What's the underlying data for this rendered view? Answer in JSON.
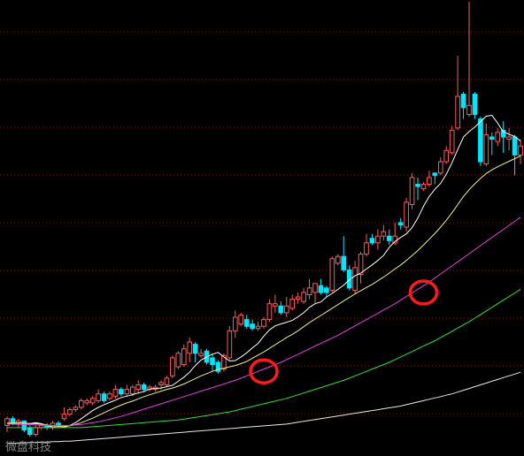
{
  "chart_data": {
    "type": "candlestick",
    "title": "",
    "xlabel": "",
    "ylabel": "",
    "ylim": [
      0,
      100
    ],
    "grid": "horizontal-dotted",
    "colors": {
      "background": "#000000",
      "up": "#ff5a5a",
      "down": "#00e5ff",
      "grid": "#8a1515",
      "ma_white": "#ffffff",
      "ma_yellow": "#f2f27a",
      "ma_magenta": "#e040e0",
      "ma_green": "#33dd33",
      "ma_lightgray": "#e8e8e8",
      "highlight_circle": "#ff1a1a"
    },
    "candles": [
      [
        6.0,
        7.5,
        4.5,
        8.0
      ],
      [
        7.5,
        6.5,
        6.0,
        8.0
      ],
      [
        6.5,
        7.0,
        5.5,
        7.5
      ],
      [
        7.0,
        5.0,
        4.5,
        7.0
      ],
      [
        5.5,
        4.0,
        3.5,
        6.0
      ],
      [
        4.0,
        5.5,
        3.5,
        6.0
      ],
      [
        5.5,
        6.0,
        5.0,
        6.5
      ],
      [
        6.0,
        5.5,
        5.0,
        6.5
      ],
      [
        5.5,
        6.5,
        5.0,
        7.0
      ],
      [
        6.5,
        6.0,
        5.5,
        7.0
      ],
      [
        7.5,
        8.5,
        7.0,
        10.0
      ],
      [
        8.5,
        9.5,
        8.0,
        10.0
      ],
      [
        9.5,
        10.0,
        9.0,
        10.5
      ],
      [
        10.0,
        11.5,
        9.5,
        12.0
      ],
      [
        11.0,
        11.5,
        10.5,
        12.0
      ],
      [
        11.0,
        12.0,
        10.5,
        12.5
      ],
      [
        11.5,
        13.0,
        11.0,
        14.0
      ],
      [
        13.0,
        11.5,
        11.0,
        13.5
      ],
      [
        12.0,
        13.0,
        11.5,
        13.5
      ],
      [
        12.5,
        14.0,
        12.0,
        15.0
      ],
      [
        14.0,
        13.0,
        12.5,
        14.5
      ],
      [
        13.0,
        14.0,
        12.5,
        15.0
      ],
      [
        13.0,
        14.5,
        12.5,
        15.0
      ],
      [
        14.0,
        15.0,
        13.0,
        16.0
      ],
      [
        15.0,
        14.0,
        13.5,
        15.5
      ],
      [
        14.0,
        14.5,
        13.5,
        15.0
      ],
      [
        14.0,
        14.5,
        13.5,
        15.0
      ],
      [
        15.0,
        15.5,
        14.0,
        16.0
      ],
      [
        15.0,
        16.5,
        14.5,
        17.0
      ],
      [
        17.0,
        21.0,
        16.5,
        21.5
      ],
      [
        19.0,
        22.0,
        18.5,
        22.5
      ],
      [
        19.5,
        23.0,
        19.0,
        24.0
      ],
      [
        22.0,
        24.5,
        20.0,
        25.5
      ],
      [
        24.0,
        22.0,
        20.0,
        24.5
      ],
      [
        21.5,
        22.0,
        21.0,
        23.0
      ],
      [
        22.5,
        20.0,
        19.5,
        23.0
      ],
      [
        21.0,
        19.5,
        18.0,
        22.0
      ],
      [
        20.0,
        18.0,
        17.5,
        20.5
      ],
      [
        18.5,
        21.5,
        18.0,
        22.0
      ],
      [
        21.0,
        27.0,
        20.5,
        28.0
      ],
      [
        27.0,
        30.0,
        25.5,
        31.5
      ],
      [
        28.5,
        30.5,
        28.0,
        31.0
      ],
      [
        29.5,
        28.0,
        27.5,
        30.5
      ],
      [
        28.5,
        27.5,
        27.0,
        29.5
      ],
      [
        27.5,
        28.0,
        27.0,
        29.0
      ],
      [
        28.0,
        29.5,
        27.5,
        30.0
      ],
      [
        29.5,
        33.0,
        29.0,
        34.0
      ],
      [
        32.5,
        33.0,
        31.0,
        35.0
      ],
      [
        32.5,
        31.0,
        30.5,
        33.5
      ],
      [
        31.0,
        32.5,
        30.0,
        34.5
      ],
      [
        32.0,
        34.0,
        31.5,
        35.0
      ],
      [
        34.0,
        34.5,
        33.0,
        35.5
      ],
      [
        33.5,
        35.5,
        33.0,
        36.5
      ],
      [
        35.0,
        36.5,
        34.0,
        38.5
      ],
      [
        35.5,
        37.5,
        33.0,
        37.5
      ],
      [
        37.0,
        35.5,
        35.0,
        38.5
      ],
      [
        36.5,
        35.5,
        34.5,
        37.0
      ],
      [
        36.0,
        43.0,
        35.5,
        43.5
      ],
      [
        42.0,
        43.5,
        41.5,
        44.0
      ],
      [
        43.5,
        40.5,
        40.0,
        48.0
      ],
      [
        40.5,
        36.5,
        36.0,
        41.5
      ],
      [
        36.0,
        41.0,
        35.0,
        42.5
      ],
      [
        39.5,
        44.0,
        37.5,
        44.5
      ],
      [
        44.0,
        46.5,
        43.5,
        48.5
      ],
      [
        47.5,
        46.5,
        46.0,
        48.5
      ],
      [
        46.5,
        48.0,
        45.0,
        49.5
      ],
      [
        48.0,
        49.0,
        47.0,
        50.5
      ],
      [
        48.0,
        47.0,
        46.0,
        49.5
      ],
      [
        46.5,
        48.0,
        46.0,
        51.0
      ],
      [
        51.0,
        50.5,
        49.5,
        52.0
      ],
      [
        50.0,
        55.5,
        49.0,
        56.5
      ],
      [
        55.0,
        61.0,
        54.0,
        62.0
      ],
      [
        59.5,
        59.0,
        56.0,
        61.0
      ],
      [
        58.5,
        59.5,
        58.0,
        60.0
      ],
      [
        59.5,
        61.0,
        59.0,
        62.5
      ],
      [
        62.0,
        61.5,
        59.5,
        62.0
      ],
      [
        62.0,
        64.5,
        61.5,
        65.5
      ],
      [
        64.5,
        67.0,
        64.0,
        68.0
      ],
      [
        66.5,
        71.5,
        66.0,
        72.5
      ],
      [
        72.0,
        79.0,
        71.5,
        88.0
      ],
      [
        79.5,
        76.5,
        74.0,
        80.0
      ],
      [
        75.0,
        77.0,
        74.5,
        100.0
      ],
      [
        79.5,
        75.0,
        74.0,
        80.0
      ],
      [
        74.0,
        64.5,
        63.5,
        74.5
      ],
      [
        64.0,
        70.5,
        63.5,
        73.0
      ],
      [
        70.0,
        69.5,
        66.0,
        71.0
      ],
      [
        69.0,
        71.0,
        68.0,
        72.0
      ],
      [
        71.5,
        70.0,
        66.5,
        73.5
      ],
      [
        69.5,
        70.0,
        67.0,
        72.0
      ],
      [
        70.0,
        66.0,
        61.5,
        70.5
      ],
      [
        66.0,
        68.0,
        64.0,
        69.5
      ]
    ],
    "moving_averages": [
      {
        "key": "ma_white",
        "values": [
          6.5,
          6.5,
          6.6,
          6.5,
          6.4,
          6.6,
          6.4,
          6.0,
          5.6,
          5.5,
          5.6,
          6.0,
          6.6,
          7.5,
          8.4,
          9.3,
          10.0,
          10.6,
          11.1,
          11.6,
          12.2,
          12.5,
          12.8,
          13.2,
          13.5,
          14.1,
          14.2,
          14.3,
          14.6,
          14.9,
          15.8,
          16.7,
          17.8,
          19.3,
          20.5,
          21.2,
          21.8,
          22.2,
          21.2,
          20.3,
          20.4,
          21.2,
          22.1,
          23.2,
          24.2,
          25.8,
          27.2,
          28.1,
          28.5,
          28.9,
          29.3,
          30.1,
          31.0,
          32.2,
          33.0,
          33.4,
          34.5,
          35.3,
          36.2,
          37.1,
          38.3,
          39.2,
          39.8,
          40.7,
          41.6,
          42.6,
          43.7,
          45.5,
          46.8,
          47.7,
          48.5,
          49.9,
          52.0,
          54.6,
          56.8,
          58.4,
          59.7,
          61.7,
          64.3,
          67.2,
          70.0,
          71.2,
          72.2,
          73.4,
          74.6,
          74.8,
          73.1,
          71.1,
          70.6,
          70.1,
          69.1
        ]
      },
      {
        "key": "ma_yellow",
        "values": [
          6.5,
          6.5,
          6.5,
          6.5,
          6.4,
          6.4,
          6.3,
          6.1,
          5.9,
          5.8,
          5.8,
          5.9,
          6.2,
          6.6,
          7.1,
          7.6,
          8.2,
          8.8,
          9.4,
          10.0,
          10.5,
          11.0,
          11.4,
          11.9,
          12.4,
          12.8,
          13.2,
          13.6,
          14.0,
          14.3,
          14.7,
          15.2,
          15.8,
          16.4,
          17.0,
          17.5,
          18.0,
          18.4,
          18.7,
          19.0,
          19.3,
          19.7,
          20.2,
          20.9,
          21.6,
          22.3,
          23.1,
          23.9,
          24.7,
          25.5,
          26.2,
          27.0,
          27.9,
          28.8,
          29.6,
          30.4,
          31.2,
          32.0,
          32.8,
          33.6,
          34.4,
          35.2,
          35.9,
          36.6,
          37.3,
          38.1,
          38.9,
          39.8,
          40.7,
          41.6,
          42.6,
          43.7,
          44.8,
          46.0,
          47.3,
          48.6,
          50.0,
          51.5,
          53.2,
          55.0,
          56.8,
          58.3,
          59.6,
          60.8,
          61.9,
          62.7,
          63.4,
          64.0,
          64.6,
          65.2,
          65.8
        ]
      },
      {
        "key": "ma_magenta",
        "values": [
          6.3,
          6.3,
          6.2,
          6.2,
          6.2,
          6.1,
          6.1,
          6.0,
          6.0,
          6.0,
          6.0,
          6.0,
          6.1,
          6.2,
          6.4,
          6.6,
          6.8,
          7.1,
          7.4,
          7.7,
          8.0,
          8.4,
          8.8,
          9.2,
          9.6,
          10.0,
          10.4,
          10.8,
          11.2,
          11.6,
          12.0,
          12.4,
          12.8,
          13.2,
          13.6,
          14.0,
          14.4,
          14.8,
          15.2,
          15.6,
          16.0,
          16.5,
          17.0,
          17.5,
          18.0,
          18.5,
          19.0,
          19.5,
          20.0,
          20.6,
          21.2,
          21.8,
          22.4,
          23.0,
          23.6,
          24.2,
          24.8,
          25.4,
          26.0,
          26.7,
          27.4,
          28.1,
          28.8,
          29.5,
          30.2,
          30.9,
          31.6,
          32.3,
          33.0,
          33.8,
          34.6,
          35.4,
          36.2,
          37.0,
          37.8,
          38.7,
          39.6,
          40.5,
          41.4,
          42.3,
          43.2,
          44.1,
          45.0,
          45.9,
          46.8,
          47.7,
          48.6,
          49.5,
          50.4,
          51.3,
          52.2
        ]
      },
      {
        "key": "ma_green",
        "values": [
          5.5,
          5.5,
          5.5,
          5.5,
          5.5,
          5.5,
          5.5,
          5.5,
          5.5,
          5.5,
          5.5,
          5.5,
          5.5,
          5.5,
          5.6,
          5.7,
          5.8,
          5.9,
          6.0,
          6.1,
          6.2,
          6.3,
          6.4,
          6.5,
          6.6,
          6.7,
          6.8,
          6.9,
          7.0,
          7.1,
          7.2,
          7.4,
          7.6,
          7.8,
          8.0,
          8.2,
          8.4,
          8.6,
          8.8,
          9.0,
          9.3,
          9.6,
          9.9,
          10.2,
          10.5,
          10.8,
          11.1,
          11.4,
          11.7,
          12.0,
          12.4,
          12.8,
          13.2,
          13.6,
          14.0,
          14.4,
          14.8,
          15.2,
          15.6,
          16.0,
          16.5,
          17.0,
          17.5,
          18.0,
          18.5,
          19.0,
          19.5,
          20.0,
          20.6,
          21.2,
          21.8,
          22.4,
          23.0,
          23.6,
          24.2,
          24.8,
          25.5,
          26.2,
          26.9,
          27.6,
          28.3,
          29.0,
          29.8,
          30.6,
          31.4,
          32.2,
          33.0,
          33.8,
          34.6,
          35.4,
          36.2
        ]
      },
      {
        "key": "ma_lightgray",
        "values": [
          2.0,
          2.0,
          2.1,
          2.1,
          2.2,
          2.2,
          2.3,
          2.3,
          2.4,
          2.4,
          2.5,
          2.5,
          2.6,
          2.7,
          2.8,
          2.9,
          3.0,
          3.1,
          3.2,
          3.3,
          3.4,
          3.5,
          3.6,
          3.7,
          3.8,
          3.9,
          4.0,
          4.1,
          4.2,
          4.3,
          4.4,
          4.5,
          4.6,
          4.7,
          4.8,
          4.9,
          5.0,
          5.1,
          5.2,
          5.3,
          5.4,
          5.5,
          5.6,
          5.7,
          5.8,
          5.9,
          6.0,
          6.1,
          6.2,
          6.3,
          6.5,
          6.7,
          6.9,
          7.1,
          7.3,
          7.5,
          7.7,
          7.9,
          8.1,
          8.3,
          8.5,
          8.7,
          8.9,
          9.1,
          9.3,
          9.5,
          9.7,
          9.9,
          10.1,
          10.3,
          10.6,
          10.9,
          11.2,
          11.5,
          11.8,
          12.1,
          12.4,
          12.7,
          13.0,
          13.4,
          13.8,
          14.2,
          14.6,
          15.0,
          15.4,
          15.8,
          16.2,
          16.6,
          17.0,
          17.4,
          17.8
        ]
      }
    ],
    "highlights": [
      {
        "index": 45,
        "value": 18.0
      },
      {
        "index": 73,
        "value": 35.5
      }
    ]
  },
  "watermark": {
    "text": "微盘科技"
  }
}
